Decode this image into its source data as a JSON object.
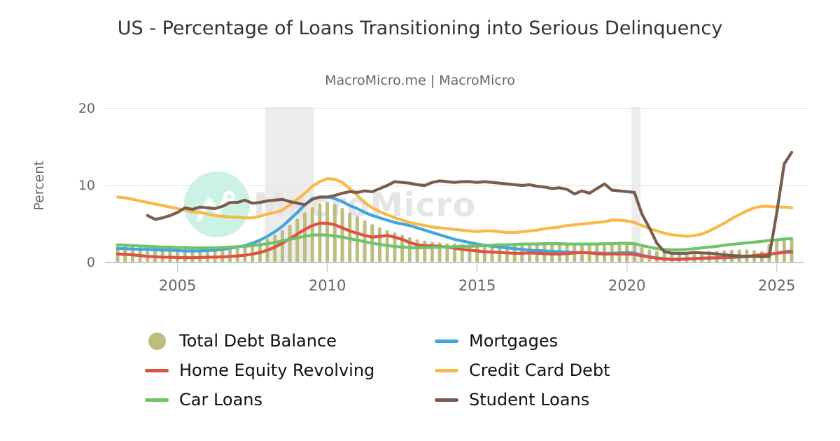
{
  "header": {
    "title": "US - Percentage of Loans Transitioning into Serious Delinquency",
    "subtitle": "MacroMicro.me | MacroMicro"
  },
  "watermark": {
    "text": "MacroMicro",
    "circle_color": "#cbf2e5",
    "text_color": "#e5e5e5"
  },
  "axes": {
    "y_label": "Percent",
    "y_ticks": [
      {
        "label": "0",
        "value": 0
      },
      {
        "label": "10",
        "value": 10
      },
      {
        "label": "20",
        "value": 20
      }
    ],
    "x_ticks": [
      {
        "label": "2005",
        "year": 2005
      },
      {
        "label": "2010",
        "year": 2010
      },
      {
        "label": "2015",
        "year": 2015
      },
      {
        "label": "2020",
        "year": 2020
      },
      {
        "label": "2025",
        "year": 2025
      }
    ],
    "y_max": 20,
    "grid_color": "#e8e8e8",
    "axis_line_color": "#c9c9c9",
    "tick_text_color": "#666666"
  },
  "recession_bands": [
    {
      "start": 2007.92,
      "end": 2009.55
    },
    {
      "start": 2020.15,
      "end": 2020.45
    }
  ],
  "legend": [
    {
      "label": "Total Debt Balance",
      "marker": "circle",
      "color": "#bcbd7e",
      "column": 1
    },
    {
      "label": "Home Equity Revolving",
      "marker": "line",
      "color": "#df5140",
      "column": 1
    },
    {
      "label": "Car Loans",
      "marker": "line",
      "color": "#6fc36a",
      "column": 1
    },
    {
      "label": "Mortgages",
      "marker": "line",
      "color": "#42a5dc",
      "column": 2
    },
    {
      "label": "Credit Card Debt",
      "marker": "line",
      "color": "#f8b84a",
      "column": 2
    },
    {
      "label": "Student Loans",
      "marker": "line",
      "color": "#7a5c4f",
      "column": 2
    }
  ],
  "chart_data": {
    "type": "bar+line",
    "title": "US - Percentage of Loans Transitioning into Serious Delinquency",
    "xlabel": "",
    "ylabel": "Percent",
    "x_start": 2003.0,
    "x_step": 0.25,
    "x_end": 2025.5,
    "ylim": [
      0,
      20
    ],
    "grid": true,
    "legend_position": "bottom",
    "series": [
      {
        "name": "Total Debt Balance",
        "type": "bar",
        "color": "#bcbd7e",
        "values": [
          2.4,
          2.4,
          2.3,
          2.3,
          2.2,
          2.15,
          2.1,
          2.05,
          2.0,
          2.0,
          1.95,
          1.95,
          1.95,
          1.95,
          2.0,
          2.05,
          2.1,
          2.2,
          2.4,
          2.7,
          3.1,
          3.6,
          4.2,
          4.9,
          5.7,
          6.5,
          7.2,
          7.7,
          7.9,
          7.6,
          7.1,
          6.5,
          6.0,
          5.5,
          5.0,
          4.6,
          4.2,
          3.9,
          3.6,
          3.3,
          3.0,
          2.85,
          2.7,
          2.6,
          2.5,
          2.45,
          2.4,
          2.4,
          2.35,
          2.3,
          2.3,
          2.3,
          2.3,
          2.3,
          2.3,
          2.35,
          2.4,
          2.4,
          2.4,
          2.4,
          2.4,
          2.4,
          2.4,
          2.4,
          2.4,
          2.45,
          2.5,
          2.5,
          2.45,
          2.4,
          2.0,
          1.7,
          1.5,
          1.4,
          1.35,
          1.3,
          1.3,
          1.35,
          1.4,
          1.5,
          1.55,
          1.6,
          1.65,
          1.7,
          1.7,
          1.6,
          1.5,
          2.4,
          3.0,
          3.1,
          3.1
        ]
      },
      {
        "name": "Mortgages",
        "type": "line",
        "color": "#42a5dc",
        "values": [
          1.8,
          1.8,
          1.75,
          1.7,
          1.7,
          1.65,
          1.6,
          1.6,
          1.55,
          1.5,
          1.5,
          1.5,
          1.55,
          1.6,
          1.7,
          1.85,
          2.0,
          2.2,
          2.5,
          2.9,
          3.4,
          4.0,
          4.7,
          5.6,
          6.5,
          7.5,
          8.3,
          8.5,
          8.5,
          8.3,
          7.9,
          7.4,
          7.0,
          6.5,
          6.1,
          5.8,
          5.5,
          5.2,
          5.0,
          4.8,
          4.5,
          4.2,
          3.9,
          3.6,
          3.3,
          3.0,
          2.8,
          2.6,
          2.4,
          2.25,
          2.1,
          2.0,
          1.9,
          1.8,
          1.7,
          1.6,
          1.55,
          1.5,
          1.45,
          1.4,
          1.35,
          1.3,
          1.3,
          1.25,
          1.25,
          1.2,
          1.2,
          1.25,
          1.3,
          1.25,
          0.95,
          0.75,
          0.6,
          0.5,
          0.45,
          0.45,
          0.5,
          0.5,
          0.55,
          0.55,
          0.6,
          0.6,
          0.65,
          0.7,
          0.75,
          0.85,
          0.95,
          1.05,
          1.2,
          1.4,
          1.5
        ]
      },
      {
        "name": "Home Equity Revolving",
        "type": "line",
        "color": "#df5140",
        "values": [
          1.1,
          1.05,
          1.0,
          0.9,
          0.8,
          0.75,
          0.7,
          0.68,
          0.65,
          0.63,
          0.62,
          0.65,
          0.68,
          0.7,
          0.73,
          0.78,
          0.85,
          0.95,
          1.1,
          1.3,
          1.6,
          2.0,
          2.5,
          3.1,
          3.7,
          4.3,
          4.8,
          5.1,
          5.1,
          4.9,
          4.5,
          4.1,
          3.8,
          3.5,
          3.3,
          3.4,
          3.5,
          3.3,
          3.0,
          2.6,
          2.3,
          2.2,
          2.15,
          2.1,
          2.0,
          1.85,
          1.7,
          1.6,
          1.5,
          1.4,
          1.35,
          1.3,
          1.25,
          1.2,
          1.2,
          1.25,
          1.2,
          1.15,
          1.1,
          1.1,
          1.15,
          1.25,
          1.3,
          1.25,
          1.15,
          1.1,
          1.1,
          1.1,
          1.1,
          1.05,
          0.85,
          0.7,
          0.55,
          0.45,
          0.4,
          0.4,
          0.45,
          0.5,
          0.55,
          0.6,
          0.6,
          0.65,
          0.7,
          0.75,
          0.8,
          0.9,
          1.0,
          1.1,
          1.2,
          1.3,
          1.35
        ]
      },
      {
        "name": "Credit Card Debt",
        "type": "line",
        "color": "#f8b84a",
        "values": [
          8.5,
          8.4,
          8.2,
          8.0,
          7.8,
          7.6,
          7.4,
          7.2,
          7.0,
          6.8,
          6.6,
          6.5,
          6.3,
          6.1,
          6.0,
          5.9,
          5.9,
          5.8,
          5.8,
          6.0,
          6.3,
          6.5,
          6.8,
          7.5,
          8.2,
          9.0,
          9.9,
          10.5,
          10.9,
          10.8,
          10.4,
          9.6,
          8.7,
          7.8,
          7.1,
          6.6,
          6.2,
          5.8,
          5.5,
          5.2,
          5.0,
          4.8,
          4.6,
          4.5,
          4.4,
          4.3,
          4.2,
          4.1,
          4.0,
          4.1,
          4.1,
          4.0,
          3.9,
          3.9,
          4.0,
          4.1,
          4.2,
          4.4,
          4.5,
          4.6,
          4.8,
          4.9,
          5.0,
          5.1,
          5.2,
          5.3,
          5.5,
          5.5,
          5.4,
          5.2,
          4.8,
          4.4,
          4.1,
          3.8,
          3.6,
          3.5,
          3.4,
          3.5,
          3.7,
          4.1,
          4.6,
          5.1,
          5.7,
          6.2,
          6.7,
          7.1,
          7.3,
          7.3,
          7.2,
          7.2,
          7.1
        ]
      },
      {
        "name": "Car Loans",
        "type": "line",
        "color": "#6fc36a",
        "values": [
          2.3,
          2.25,
          2.2,
          2.15,
          2.1,
          2.05,
          2.0,
          2.0,
          1.95,
          1.95,
          1.9,
          1.9,
          1.9,
          1.9,
          1.95,
          2.0,
          2.05,
          2.1,
          2.2,
          2.3,
          2.45,
          2.6,
          2.8,
          3.0,
          3.2,
          3.4,
          3.55,
          3.6,
          3.55,
          3.45,
          3.3,
          3.1,
          2.9,
          2.7,
          2.5,
          2.35,
          2.2,
          2.1,
          2.0,
          1.95,
          1.9,
          1.95,
          1.95,
          2.0,
          2.0,
          2.05,
          2.1,
          2.1,
          2.15,
          2.2,
          2.25,
          2.3,
          2.3,
          2.35,
          2.4,
          2.4,
          2.4,
          2.45,
          2.45,
          2.45,
          2.4,
          2.4,
          2.4,
          2.4,
          2.4,
          2.45,
          2.45,
          2.5,
          2.5,
          2.45,
          2.2,
          2.0,
          1.8,
          1.7,
          1.65,
          1.65,
          1.7,
          1.8,
          1.9,
          2.0,
          2.1,
          2.25,
          2.35,
          2.45,
          2.55,
          2.65,
          2.75,
          2.85,
          2.95,
          3.05,
          3.1
        ]
      },
      {
        "name": "Student Loans",
        "type": "line",
        "color": "#7a5c4f",
        "values": [
          null,
          null,
          null,
          null,
          6.1,
          5.6,
          5.8,
          6.1,
          6.5,
          7.1,
          6.9,
          7.2,
          7.1,
          7.0,
          7.3,
          7.8,
          7.8,
          8.1,
          7.7,
          7.8,
          8.0,
          8.1,
          8.2,
          7.9,
          7.7,
          7.5,
          8.2,
          8.5,
          8.5,
          8.7,
          9.0,
          9.2,
          9.1,
          9.3,
          9.2,
          9.6,
          10.0,
          10.5,
          10.4,
          10.3,
          10.1,
          10.0,
          10.4,
          10.6,
          10.5,
          10.4,
          10.5,
          10.5,
          10.4,
          10.5,
          10.4,
          10.3,
          10.2,
          10.1,
          10.0,
          10.1,
          9.9,
          9.8,
          9.6,
          9.7,
          9.5,
          8.9,
          9.3,
          9.0,
          9.6,
          10.2,
          9.4,
          9.3,
          9.2,
          9.1,
          6.3,
          4.5,
          2.5,
          1.4,
          1.2,
          1.2,
          1.2,
          1.3,
          1.25,
          1.2,
          1.1,
          1.0,
          0.9,
          0.85,
          0.8,
          0.8,
          0.75,
          0.8,
          6.4,
          12.8,
          14.3
        ]
      }
    ]
  }
}
